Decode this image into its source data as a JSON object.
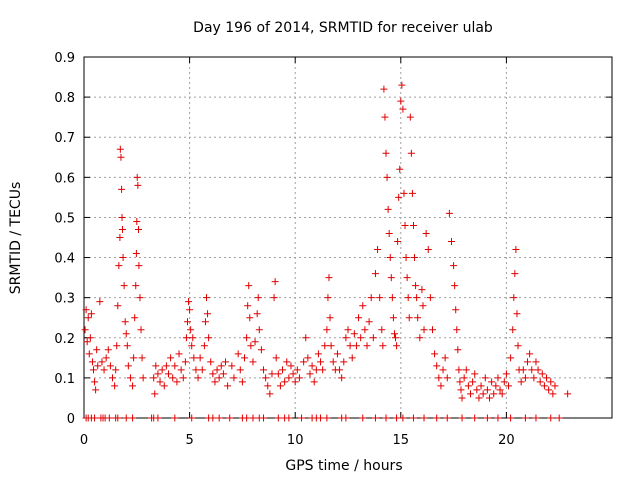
{
  "chart_data": {
    "type": "scatter",
    "title": "Day 196 of 2014, SRMTID for receiver ulab",
    "xlabel": "GPS time / hours",
    "ylabel": "SRMTID / TECUs",
    "xlim": [
      0,
      25
    ],
    "ylim": [
      0,
      0.9
    ],
    "xticks": [
      0,
      5,
      10,
      15,
      20
    ],
    "yticks": [
      0,
      0.1,
      0.2,
      0.3,
      0.4,
      0.5,
      0.6,
      0.7,
      0.8,
      0.9
    ],
    "xtick_labels": [
      "0",
      "5",
      "10",
      "15",
      "20"
    ],
    "ytick_labels": [
      "0",
      "0.1",
      "0.2",
      "0.3",
      "0.4",
      "0.5",
      "0.6",
      "0.7",
      "0.8",
      "0.9"
    ],
    "grid": true,
    "marker": "plus",
    "color": "#e00000",
    "series": [
      {
        "name": "SRMTID",
        "points": [
          [
            0.05,
            0.22
          ],
          [
            0.1,
            0.27
          ],
          [
            0.15,
            0.19
          ],
          [
            0.2,
            0.25
          ],
          [
            0.25,
            0.16
          ],
          [
            0.3,
            0.2
          ],
          [
            0.35,
            0.26
          ],
          [
            0.4,
            0.14
          ],
          [
            0.45,
            0.12
          ],
          [
            0.5,
            0.09
          ],
          [
            0.55,
            0.07
          ],
          [
            0.6,
            0.17
          ],
          [
            0.65,
            0.13
          ],
          [
            0.75,
            0.29
          ],
          [
            0.85,
            0.14
          ],
          [
            0.95,
            0.12
          ],
          [
            1.05,
            0.15
          ],
          [
            1.15,
            0.17
          ],
          [
            1.25,
            0.13
          ],
          [
            1.35,
            0.1
          ],
          [
            1.45,
            0.08
          ],
          [
            1.5,
            0.12
          ],
          [
            1.55,
            0.18
          ],
          [
            1.6,
            0.28
          ],
          [
            1.65,
            0.38
          ],
          [
            1.7,
            0.45
          ],
          [
            1.72,
            0.67
          ],
          [
            1.75,
            0.65
          ],
          [
            1.78,
            0.57
          ],
          [
            1.8,
            0.5
          ],
          [
            1.82,
            0.47
          ],
          [
            1.85,
            0.4
          ],
          [
            1.9,
            0.33
          ],
          [
            1.95,
            0.24
          ],
          [
            2.0,
            0.21
          ],
          [
            2.05,
            0.18
          ],
          [
            2.1,
            0.13
          ],
          [
            2.2,
            0.1
          ],
          [
            2.3,
            0.08
          ],
          [
            2.35,
            0.15
          ],
          [
            2.4,
            0.25
          ],
          [
            2.45,
            0.33
          ],
          [
            2.48,
            0.41
          ],
          [
            2.5,
            0.49
          ],
          [
            2.52,
            0.6
          ],
          [
            2.55,
            0.58
          ],
          [
            2.58,
            0.47
          ],
          [
            2.6,
            0.38
          ],
          [
            2.65,
            0.3
          ],
          [
            2.7,
            0.22
          ],
          [
            2.75,
            0.15
          ],
          [
            2.8,
            0.1
          ],
          [
            3.3,
            0.1
          ],
          [
            3.35,
            0.06
          ],
          [
            3.4,
            0.13
          ],
          [
            3.5,
            0.11
          ],
          [
            3.6,
            0.09
          ],
          [
            3.7,
            0.12
          ],
          [
            3.8,
            0.08
          ],
          [
            3.9,
            0.13
          ],
          [
            4.0,
            0.11
          ],
          [
            4.1,
            0.15
          ],
          [
            4.2,
            0.1
          ],
          [
            4.3,
            0.13
          ],
          [
            4.4,
            0.09
          ],
          [
            4.5,
            0.16
          ],
          [
            4.6,
            0.12
          ],
          [
            4.7,
            0.1
          ],
          [
            4.8,
            0.14
          ],
          [
            4.85,
            0.2
          ],
          [
            4.9,
            0.24
          ],
          [
            4.95,
            0.29
          ],
          [
            5.0,
            0.27
          ],
          [
            5.05,
            0.22
          ],
          [
            5.1,
            0.18
          ],
          [
            5.15,
            0.2
          ],
          [
            5.2,
            0.15
          ],
          [
            5.3,
            0.12
          ],
          [
            5.4,
            0.1
          ],
          [
            5.5,
            0.15
          ],
          [
            5.6,
            0.12
          ],
          [
            5.7,
            0.18
          ],
          [
            5.75,
            0.24
          ],
          [
            5.8,
            0.3
          ],
          [
            5.85,
            0.26
          ],
          [
            5.9,
            0.2
          ],
          [
            6.0,
            0.14
          ],
          [
            6.1,
            0.11
          ],
          [
            6.2,
            0.09
          ],
          [
            6.3,
            0.12
          ],
          [
            6.4,
            0.1
          ],
          [
            6.5,
            0.13
          ],
          [
            6.6,
            0.11
          ],
          [
            6.7,
            0.14
          ],
          [
            6.8,
            0.08
          ],
          [
            7.0,
            0.13
          ],
          [
            7.1,
            0.1
          ],
          [
            7.3,
            0.16
          ],
          [
            7.4,
            0.12
          ],
          [
            7.5,
            0.09
          ],
          [
            7.6,
            0.15
          ],
          [
            7.7,
            0.2
          ],
          [
            7.75,
            0.28
          ],
          [
            7.8,
            0.33
          ],
          [
            7.85,
            0.25
          ],
          [
            7.9,
            0.18
          ],
          [
            8.0,
            0.14
          ],
          [
            8.1,
            0.19
          ],
          [
            8.2,
            0.26
          ],
          [
            8.25,
            0.3
          ],
          [
            8.3,
            0.22
          ],
          [
            8.4,
            0.17
          ],
          [
            8.5,
            0.12
          ],
          [
            8.6,
            0.1
          ],
          [
            8.7,
            0.08
          ],
          [
            8.8,
            0.06
          ],
          [
            8.9,
            0.11
          ],
          [
            9.0,
            0.3
          ],
          [
            9.05,
            0.34
          ],
          [
            9.1,
            0.15
          ],
          [
            9.2,
            0.11
          ],
          [
            9.3,
            0.08
          ],
          [
            9.4,
            0.12
          ],
          [
            9.5,
            0.09
          ],
          [
            9.6,
            0.14
          ],
          [
            9.7,
            0.1
          ],
          [
            9.8,
            0.13
          ],
          [
            9.9,
            0.11
          ],
          [
            10.0,
            0.09
          ],
          [
            10.1,
            0.12
          ],
          [
            10.2,
            0.1
          ],
          [
            10.4,
            0.14
          ],
          [
            10.5,
            0.2
          ],
          [
            10.6,
            0.15
          ],
          [
            10.7,
            0.11
          ],
          [
            10.8,
            0.13
          ],
          [
            10.9,
            0.09
          ],
          [
            11.0,
            0.12
          ],
          [
            11.1,
            0.16
          ],
          [
            11.2,
            0.14
          ],
          [
            11.3,
            0.12
          ],
          [
            11.4,
            0.18
          ],
          [
            11.5,
            0.22
          ],
          [
            11.55,
            0.3
          ],
          [
            11.6,
            0.35
          ],
          [
            11.65,
            0.25
          ],
          [
            11.7,
            0.18
          ],
          [
            11.8,
            0.14
          ],
          [
            11.9,
            0.12
          ],
          [
            12.0,
            0.16
          ],
          [
            12.1,
            0.12
          ],
          [
            12.2,
            0.1
          ],
          [
            12.3,
            0.14
          ],
          [
            12.4,
            0.2
          ],
          [
            12.5,
            0.22
          ],
          [
            12.6,
            0.18
          ],
          [
            12.7,
            0.15
          ],
          [
            12.8,
            0.21
          ],
          [
            12.9,
            0.18
          ],
          [
            13.0,
            0.25
          ],
          [
            13.1,
            0.2
          ],
          [
            13.2,
            0.28
          ],
          [
            13.3,
            0.22
          ],
          [
            13.4,
            0.18
          ],
          [
            13.5,
            0.24
          ],
          [
            13.6,
            0.3
          ],
          [
            13.7,
            0.2
          ],
          [
            13.8,
            0.36
          ],
          [
            13.9,
            0.42
          ],
          [
            14.0,
            0.3
          ],
          [
            14.1,
            0.22
          ],
          [
            14.15,
            0.18
          ],
          [
            14.2,
            0.82
          ],
          [
            14.25,
            0.75
          ],
          [
            14.3,
            0.66
          ],
          [
            14.35,
            0.6
          ],
          [
            14.4,
            0.52
          ],
          [
            14.45,
            0.46
          ],
          [
            14.5,
            0.4
          ],
          [
            14.55,
            0.35
          ],
          [
            14.6,
            0.3
          ],
          [
            14.65,
            0.25
          ],
          [
            14.7,
            0.21
          ],
          [
            14.75,
            0.2
          ],
          [
            14.8,
            0.18
          ],
          [
            14.85,
            0.44
          ],
          [
            14.9,
            0.55
          ],
          [
            14.95,
            0.62
          ],
          [
            15.0,
            0.79
          ],
          [
            15.05,
            0.83
          ],
          [
            15.1,
            0.77
          ],
          [
            15.15,
            0.56
          ],
          [
            15.2,
            0.48
          ],
          [
            15.25,
            0.4
          ],
          [
            15.3,
            0.35
          ],
          [
            15.35,
            0.3
          ],
          [
            15.4,
            0.25
          ],
          [
            15.45,
            0.75
          ],
          [
            15.5,
            0.66
          ],
          [
            15.55,
            0.56
          ],
          [
            15.6,
            0.48
          ],
          [
            15.65,
            0.4
          ],
          [
            15.7,
            0.33
          ],
          [
            15.75,
            0.3
          ],
          [
            15.8,
            0.25
          ],
          [
            15.9,
            0.2
          ],
          [
            16.0,
            0.32
          ],
          [
            16.05,
            0.28
          ],
          [
            16.1,
            0.22
          ],
          [
            16.2,
            0.46
          ],
          [
            16.3,
            0.42
          ],
          [
            16.4,
            0.3
          ],
          [
            16.5,
            0.22
          ],
          [
            16.6,
            0.16
          ],
          [
            16.7,
            0.13
          ],
          [
            16.8,
            0.1
          ],
          [
            16.9,
            0.08
          ],
          [
            17.0,
            0.12
          ],
          [
            17.1,
            0.15
          ],
          [
            17.2,
            0.1
          ],
          [
            17.3,
            0.51
          ],
          [
            17.4,
            0.44
          ],
          [
            17.5,
            0.38
          ],
          [
            17.55,
            0.33
          ],
          [
            17.6,
            0.27
          ],
          [
            17.65,
            0.22
          ],
          [
            17.7,
            0.17
          ],
          [
            17.75,
            0.12
          ],
          [
            17.8,
            0.09
          ],
          [
            17.85,
            0.07
          ],
          [
            17.9,
            0.05
          ],
          [
            18.0,
            0.1
          ],
          [
            18.1,
            0.12
          ],
          [
            18.2,
            0.08
          ],
          [
            18.3,
            0.06
          ],
          [
            18.4,
            0.09
          ],
          [
            18.5,
            0.11
          ],
          [
            18.6,
            0.07
          ],
          [
            18.7,
            0.05
          ],
          [
            18.8,
            0.08
          ],
          [
            18.9,
            0.06
          ],
          [
            19.0,
            0.1
          ],
          [
            19.1,
            0.07
          ],
          [
            19.2,
            0.05
          ],
          [
            19.3,
            0.09
          ],
          [
            19.4,
            0.06
          ],
          [
            19.5,
            0.08
          ],
          [
            19.6,
            0.1
          ],
          [
            19.7,
            0.07
          ],
          [
            19.8,
            0.06
          ],
          [
            19.9,
            0.09
          ],
          [
            20.0,
            0.11
          ],
          [
            20.1,
            0.08
          ],
          [
            20.2,
            0.15
          ],
          [
            20.3,
            0.22
          ],
          [
            20.35,
            0.3
          ],
          [
            20.4,
            0.36
          ],
          [
            20.45,
            0.42
          ],
          [
            20.5,
            0.26
          ],
          [
            20.55,
            0.18
          ],
          [
            20.6,
            0.12
          ],
          [
            20.7,
            0.09
          ],
          [
            20.8,
            0.12
          ],
          [
            20.9,
            0.1
          ],
          [
            21.0,
            0.14
          ],
          [
            21.1,
            0.16
          ],
          [
            21.2,
            0.12
          ],
          [
            21.3,
            0.1
          ],
          [
            21.4,
            0.14
          ],
          [
            21.5,
            0.12
          ],
          [
            21.6,
            0.09
          ],
          [
            21.7,
            0.11
          ],
          [
            21.8,
            0.08
          ],
          [
            21.9,
            0.1
          ],
          [
            22.0,
            0.07
          ],
          [
            22.1,
            0.09
          ],
          [
            22.2,
            0.06
          ],
          [
            22.3,
            0.08
          ],
          [
            22.9,
            0.06
          ]
        ]
      }
    ],
    "zero_points": [
      0.1,
      0.2,
      0.35,
      0.5,
      0.8,
      0.9,
      1.0,
      1.2,
      1.5,
      1.6,
      2.0,
      2.3,
      3.2,
      3.3,
      3.5,
      4.3,
      5.1,
      5.9,
      6.1,
      6.4,
      6.9,
      7.5,
      7.7,
      8.0,
      8.3,
      8.5,
      9.2,
      9.5,
      9.7,
      10.3,
      10.8,
      11.0,
      11.2,
      11.5,
      12.2,
      12.4,
      13.2,
      13.8,
      14.3,
      14.8,
      15.1,
      15.6,
      16.1,
      16.7,
      17.2,
      17.9,
      18.5,
      19.1,
      19.6,
      20.2,
      20.9,
      21.4,
      22.1,
      22.5
    ]
  }
}
